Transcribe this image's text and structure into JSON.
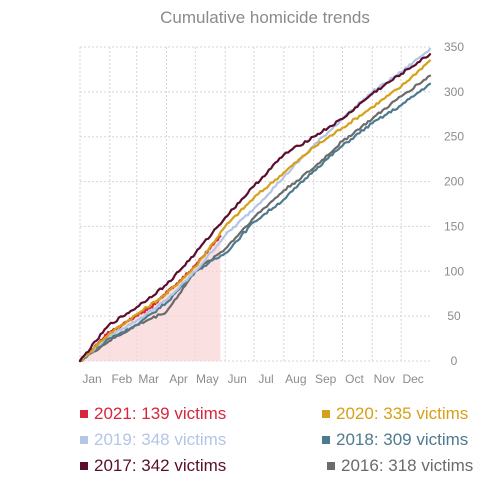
{
  "chart_data": {
    "type": "line",
    "title": "Cumulative homicide trends",
    "xlabel": "",
    "ylabel": "",
    "x_unit": "day of year",
    "xlim": [
      1,
      365
    ],
    "ylim": [
      0,
      350
    ],
    "y_ticks": [
      0,
      50,
      100,
      150,
      200,
      250,
      300,
      350
    ],
    "x_ticks": [
      {
        "label": "Jan",
        "day": 1
      },
      {
        "label": "Feb",
        "day": 32
      },
      {
        "label": "Mar",
        "day": 60
      },
      {
        "label": "Apr",
        "day": 91
      },
      {
        "label": "May",
        "day": 121
      },
      {
        "label": "Jun",
        "day": 152
      },
      {
        "label": "Jul",
        "day": 182
      },
      {
        "label": "Aug",
        "day": 213
      },
      {
        "label": "Sep",
        "day": 244
      },
      {
        "label": "Oct",
        "day": 274
      },
      {
        "label": "Nov",
        "day": 305
      },
      {
        "label": "Dec",
        "day": 335
      }
    ],
    "grid": true,
    "y_axis_side": "right",
    "legend_position": "bottom",
    "series": [
      {
        "name": "2021",
        "legend_label": "2021: 139 victims",
        "color": "#d7263d",
        "area": true,
        "x": [
          1,
          10,
          20,
          31,
          45,
          59,
          75,
          90,
          105,
          120,
          135,
          147
        ],
        "y": [
          0,
          8,
          20,
          32,
          40,
          50,
          60,
          75,
          90,
          105,
          125,
          139
        ]
      },
      {
        "name": "2020",
        "legend_label": "2020: 335 victims",
        "color": "#d6a019",
        "area": false,
        "x": [
          1,
          31,
          60,
          91,
          121,
          152,
          182,
          213,
          244,
          274,
          305,
          335,
          365
        ],
        "y": [
          0,
          30,
          52,
          75,
          105,
          150,
          182,
          210,
          238,
          260,
          283,
          306,
          335
        ]
      },
      {
        "name": "2019",
        "legend_label": "2019: 348 victims",
        "color": "#b3c6e6",
        "area": false,
        "x": [
          1,
          31,
          60,
          91,
          121,
          152,
          182,
          213,
          244,
          274,
          305,
          335,
          365
        ],
        "y": [
          0,
          28,
          45,
          68,
          100,
          140,
          170,
          205,
          240,
          270,
          300,
          322,
          348
        ]
      },
      {
        "name": "2018",
        "legend_label": "2018: 309 victims",
        "color": "#4e7a8e",
        "area": false,
        "x": [
          1,
          31,
          60,
          91,
          121,
          152,
          182,
          213,
          244,
          274,
          305,
          335,
          365
        ],
        "y": [
          0,
          25,
          40,
          65,
          100,
          120,
          155,
          180,
          212,
          240,
          265,
          285,
          309
        ]
      },
      {
        "name": "2017",
        "legend_label": "2017: 342 victims",
        "color": "#5a0e2e",
        "area": false,
        "x": [
          1,
          31,
          60,
          91,
          121,
          152,
          182,
          213,
          244,
          274,
          305,
          335,
          365
        ],
        "y": [
          0,
          40,
          60,
          85,
          120,
          160,
          195,
          230,
          250,
          270,
          298,
          320,
          342
        ]
      },
      {
        "name": "2016",
        "legend_label": "2016: 318 victims",
        "color": "#6b6b6b",
        "area": false,
        "x": [
          1,
          31,
          60,
          91,
          121,
          152,
          182,
          213,
          244,
          274,
          305,
          335,
          365
        ],
        "y": [
          0,
          22,
          40,
          55,
          100,
          125,
          160,
          190,
          215,
          245,
          270,
          295,
          318
        ]
      }
    ]
  }
}
